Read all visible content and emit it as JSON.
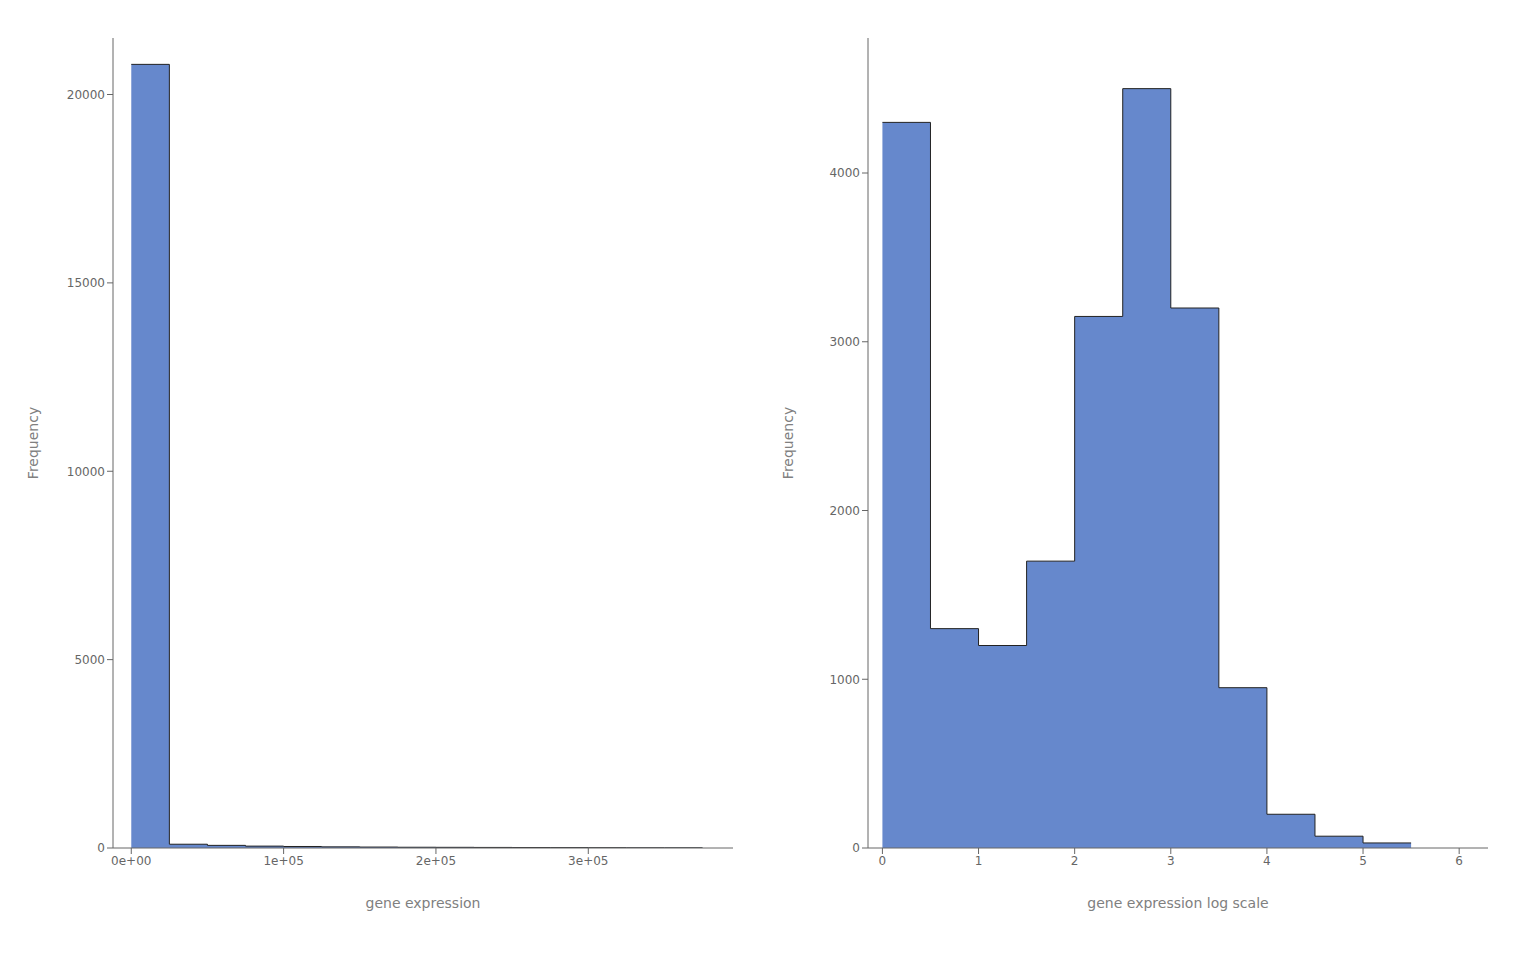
{
  "chart_data": [
    {
      "type": "histogram",
      "xlabel": "gene expression",
      "ylabel": "Frequency",
      "bins": [
        0,
        25000,
        50000,
        75000,
        100000,
        125000,
        150000,
        175000,
        200000,
        225000,
        250000,
        275000,
        300000,
        325000,
        350000,
        375000
      ],
      "values": [
        20800,
        100,
        70,
        50,
        40,
        30,
        25,
        20,
        18,
        15,
        12,
        10,
        8,
        6,
        5
      ],
      "color": "#6688cc",
      "edge_color": "#222222",
      "xlim": [
        -12000,
        395000
      ],
      "xticks": [
        {
          "value": 0,
          "label": "0e+00"
        },
        {
          "value": 100000,
          "label": "1e+05"
        },
        {
          "value": 200000,
          "label": "2e+05"
        },
        {
          "value": 300000,
          "label": "3e+05"
        }
      ],
      "ylim": [
        0,
        21500
      ],
      "yticks": [
        0,
        5000,
        10000,
        15000,
        20000
      ],
      "grid": false
    },
    {
      "type": "histogram",
      "xlabel": "gene expression log scale",
      "ylabel": "Frequency",
      "bins": [
        0,
        0.5,
        1,
        1.5,
        2,
        2.5,
        3,
        3.5,
        4,
        4.5,
        5,
        5.5
      ],
      "values": [
        4300,
        1300,
        1200,
        1700,
        3150,
        4500,
        3200,
        950,
        200,
        70,
        30
      ],
      "color": "#6688cc",
      "edge_color": "#222222",
      "xlim": [
        -0.15,
        6.3
      ],
      "xticks": [
        0,
        1,
        2,
        3,
        4,
        5,
        6
      ],
      "ylim": [
        0,
        4800
      ],
      "yticks": [
        0,
        1000,
        2000,
        3000,
        4000
      ],
      "grid": false
    }
  ]
}
